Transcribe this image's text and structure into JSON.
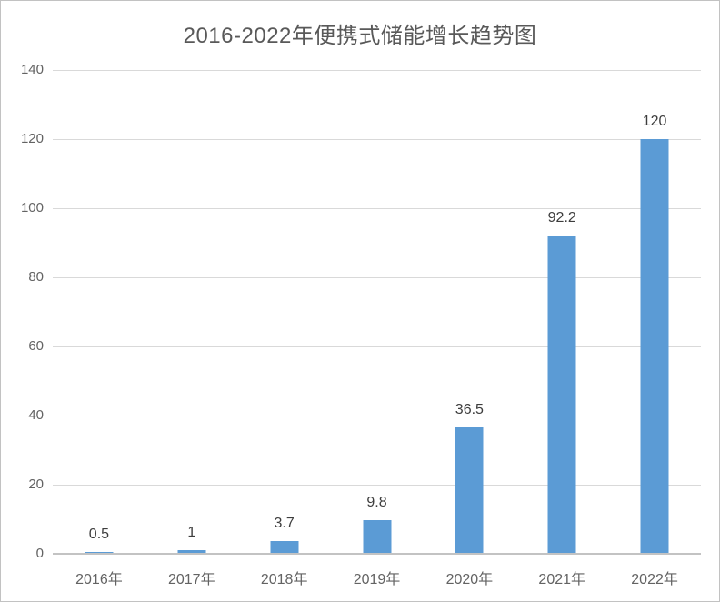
{
  "chart_data": {
    "type": "bar",
    "title": "2016-2022年便携式储能增长趋势图",
    "categories": [
      "2016年",
      "2017年",
      "2018年",
      "2019年",
      "2020年",
      "2021年",
      "2022年"
    ],
    "values": [
      0.5,
      1,
      3.7,
      9.8,
      36.5,
      92.2,
      120
    ],
    "value_labels": [
      "0.5",
      "1",
      "3.7",
      "9.8",
      "36.5",
      "92.2",
      "120"
    ],
    "xlabel": "",
    "ylabel": "",
    "ylim": [
      0,
      140
    ],
    "yticks": [
      0,
      20,
      40,
      60,
      80,
      100,
      120,
      140
    ],
    "grid": true,
    "legend": "none",
    "data_labels": "outside-end",
    "colors": {
      "bar": "#5b9bd5",
      "gridline": "#d9d9d9",
      "axis_line": "#c3c3c3",
      "title_text": "#595959",
      "tick_text": "#636363",
      "data_label_text": "#3d3d3d",
      "frame_border": "#c2c2c2",
      "background": "#ffffff"
    }
  }
}
